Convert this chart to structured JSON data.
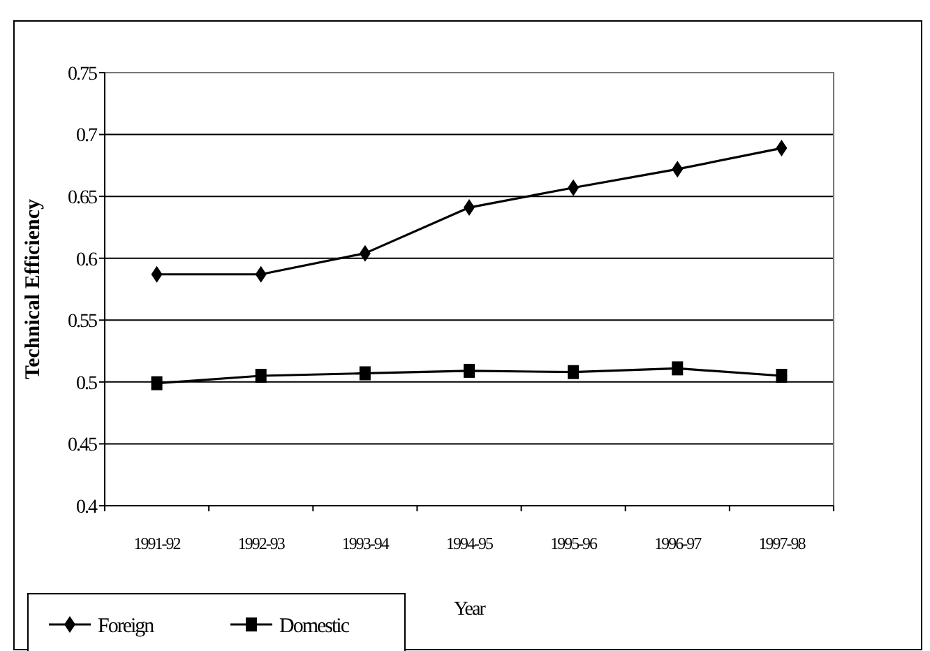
{
  "chart_data": {
    "type": "line",
    "xlabel": "Year",
    "ylabel": "Technical Efficiency",
    "categories": [
      "1991-92",
      "1992-93",
      "1993-94",
      "1994-95",
      "1995-96",
      "1996-97",
      "1997-98"
    ],
    "series": [
      {
        "name": "Foreign",
        "color": "#000000",
        "marker": "diamond",
        "values": [
          0.587,
          0.587,
          0.604,
          0.641,
          0.657,
          0.672,
          0.689
        ]
      },
      {
        "name": "Domestic",
        "color": "#000000",
        "marker": "square",
        "values": [
          0.499,
          0.505,
          0.507,
          0.509,
          0.508,
          0.511,
          0.505
        ]
      }
    ],
    "ylim": [
      0.4,
      0.75
    ],
    "yticks": [
      0.4,
      0.45,
      0.5,
      0.55,
      0.6,
      0.65,
      0.7,
      0.75
    ],
    "grid": "y",
    "legend": "bottom left"
  }
}
